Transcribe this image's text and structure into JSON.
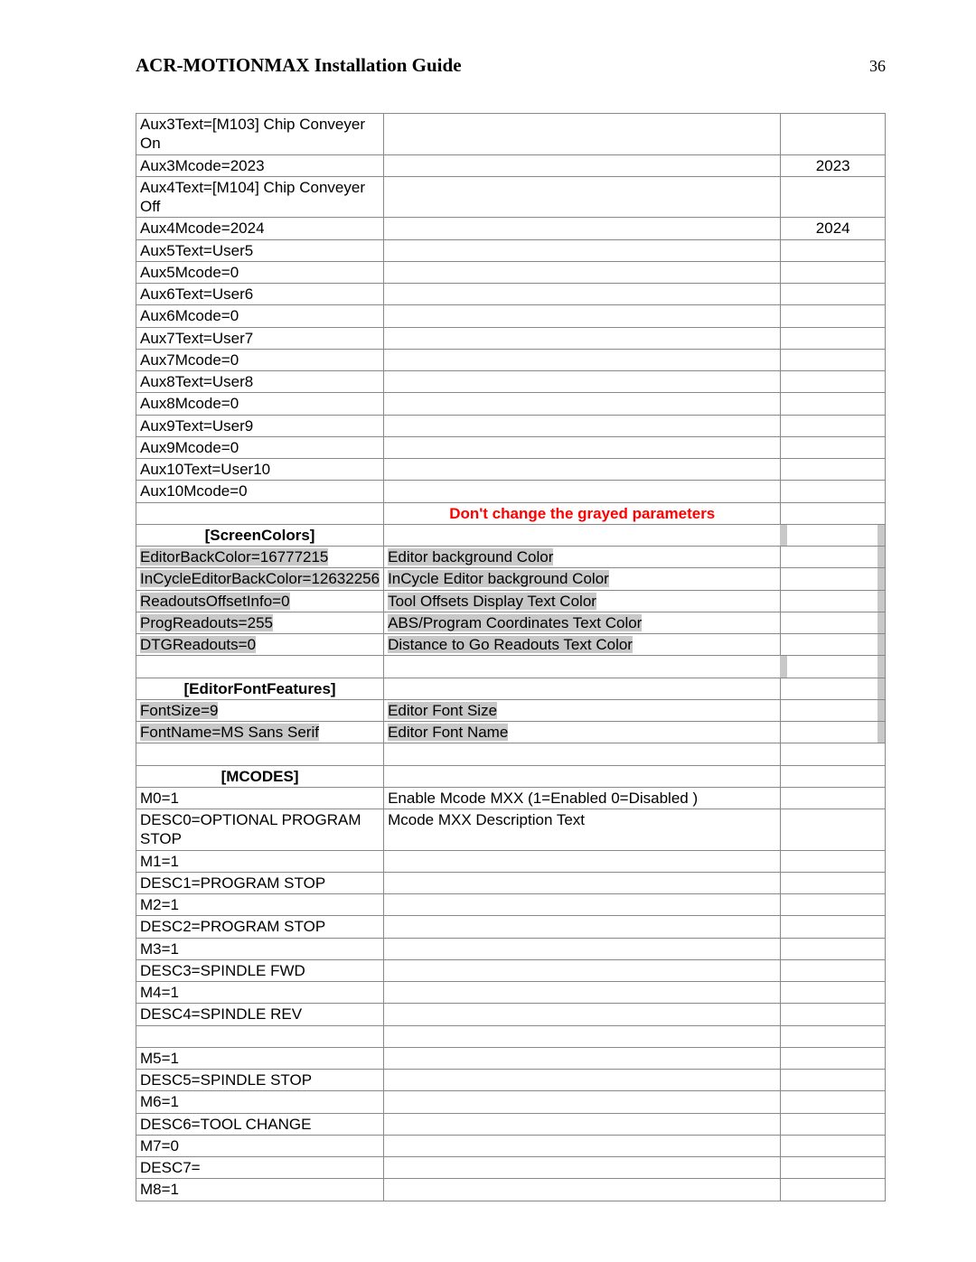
{
  "header": {
    "title": "ACR-MOTIONMAX Installation Guide",
    "page": "36"
  },
  "warning": "Don't change the grayed parameters",
  "sections": {
    "screenColors": "[ScreenColors]",
    "editorFont": "[EditorFontFeatures]",
    "mcodes": "[MCODES]"
  },
  "rows": {
    "aux3text": {
      "c1": "Aux3Text=[M103] Chip Conveyer On",
      "c2": "",
      "c3": ""
    },
    "aux3mcode": {
      "c1": "Aux3Mcode=2023",
      "c2": "",
      "c3": "2023"
    },
    "aux4text": {
      "c1": "Aux4Text=[M104] Chip Conveyer Off",
      "c2": "",
      "c3": ""
    },
    "aux4mcode": {
      "c1": "Aux4Mcode=2024",
      "c2": "",
      "c3": "2024"
    },
    "aux5text": {
      "c1": "Aux5Text=User5",
      "c2": "",
      "c3": ""
    },
    "aux5mcode": {
      "c1": "Aux5Mcode=0",
      "c2": "",
      "c3": ""
    },
    "aux6text": {
      "c1": "Aux6Text=User6",
      "c2": "",
      "c3": ""
    },
    "aux6mcode": {
      "c1": "Aux6Mcode=0",
      "c2": "",
      "c3": ""
    },
    "aux7text": {
      "c1": "Aux7Text=User7",
      "c2": "",
      "c3": ""
    },
    "aux7mcode": {
      "c1": "Aux7Mcode=0",
      "c2": "",
      "c3": ""
    },
    "aux8text": {
      "c1": "Aux8Text=User8",
      "c2": "",
      "c3": ""
    },
    "aux8mcode": {
      "c1": "Aux8Mcode=0",
      "c2": "",
      "c3": ""
    },
    "aux9text": {
      "c1": "Aux9Text=User9",
      "c2": "",
      "c3": ""
    },
    "aux9mcode": {
      "c1": "Aux9Mcode=0",
      "c2": "",
      "c3": ""
    },
    "aux10text": {
      "c1": "Aux10Text=User10",
      "c2": "",
      "c3": ""
    },
    "aux10mcode": {
      "c1": "Aux10Mcode=0",
      "c2": "",
      "c3": ""
    },
    "editorBack": {
      "c1": "EditorBackColor=16777215",
      "c2": "Editor background Color"
    },
    "inCycleBack": {
      "c1": "InCycleEditorBackColor=12632256",
      "c2": "InCycle Editor background Color"
    },
    "readouts": {
      "c1": "ReadoutsOffsetInfo=0",
      "c2": "Tool Offsets Display Text Color"
    },
    "progRead": {
      "c1": "ProgReadouts=255",
      "c2": "ABS/Program Coordinates Text Color"
    },
    "dtgRead": {
      "c1": "DTGReadouts=0",
      "c2": "Distance to Go Readouts Text Color"
    },
    "fontSize": {
      "c1": "FontSize=9",
      "c2": "Editor Font Size"
    },
    "fontName": {
      "c1": "FontName=MS Sans Serif",
      "c2": "Editor Font Name"
    },
    "m0": {
      "c1": "M0=1",
      "c2": "Enable Mcode MXX  (1=Enabled 0=Disabled )"
    },
    "desc0": {
      "c1": "DESC0=OPTIONAL PROGRAM STOP",
      "c2": "Mcode MXX Description Text"
    },
    "m1": {
      "c1": "M1=1"
    },
    "desc1": {
      "c1": "DESC1=PROGRAM STOP"
    },
    "m2": {
      "c1": "M2=1"
    },
    "desc2": {
      "c1": "DESC2=PROGRAM STOP"
    },
    "m3": {
      "c1": "M3=1"
    },
    "desc3": {
      "c1": "DESC3=SPINDLE FWD"
    },
    "m4": {
      "c1": "M4=1"
    },
    "desc4": {
      "c1": "DESC4=SPINDLE REV"
    },
    "blank": {
      "c1": ""
    },
    "m5": {
      "c1": "M5=1"
    },
    "desc5": {
      "c1": "DESC5=SPINDLE STOP"
    },
    "m6": {
      "c1": "M6=1"
    },
    "desc6": {
      "c1": "DESC6=TOOL CHANGE"
    },
    "m7": {
      "c1": "M7=0"
    },
    "desc7": {
      "c1": "DESC7="
    },
    "m8": {
      "c1": "M8=1"
    }
  }
}
